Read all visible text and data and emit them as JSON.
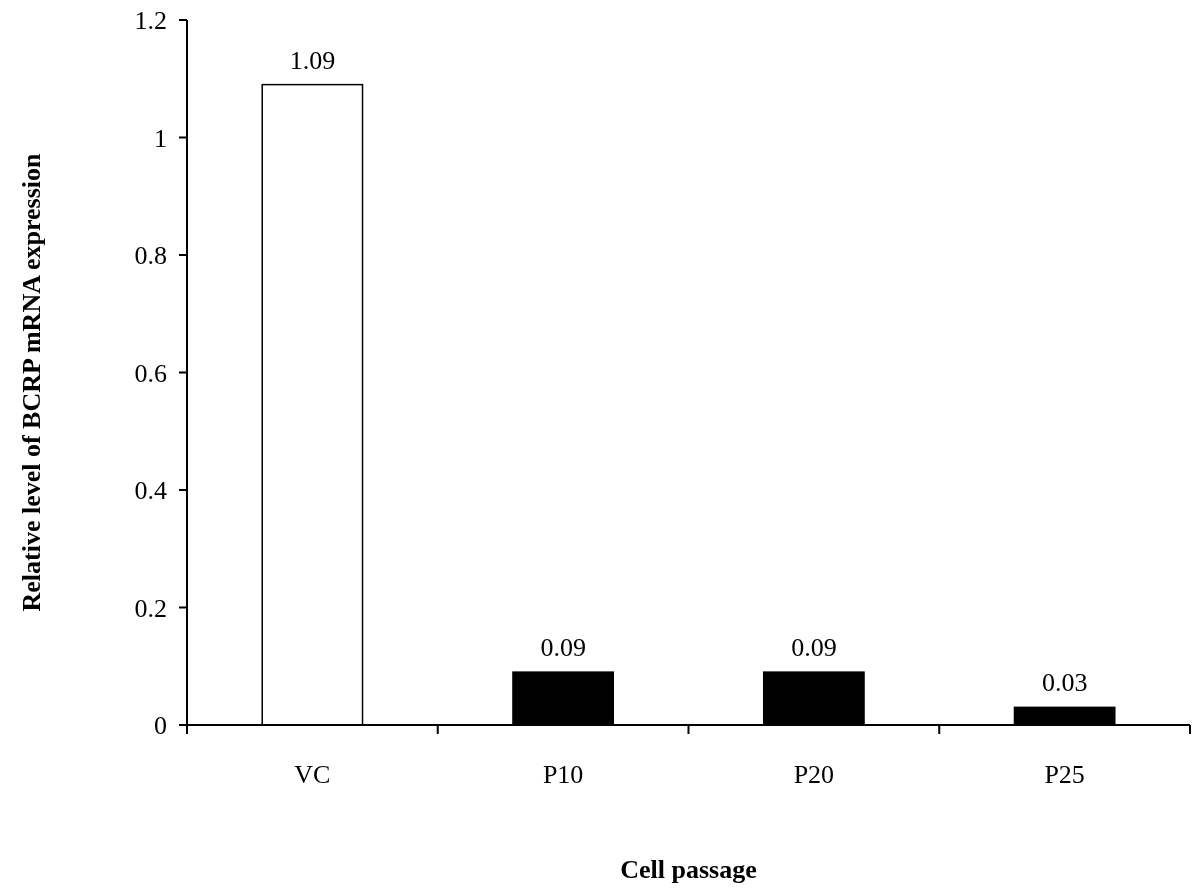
{
  "chart_data": {
    "type": "bar",
    "xlabel": "Cell passage",
    "ylabel": "Relative level of BCRP mRNA expression",
    "categories": [
      "VC",
      "P10",
      "P20",
      "P25"
    ],
    "values": [
      1.09,
      0.09,
      0.09,
      0.03
    ],
    "colors": [
      "#ffffff",
      "#000000",
      "#000000",
      "#000000"
    ],
    "ylim": [
      0,
      1.2
    ],
    "yticks": [
      0,
      0.2,
      0.4,
      0.6,
      0.8,
      1,
      1.2
    ],
    "data_labels": true
  }
}
